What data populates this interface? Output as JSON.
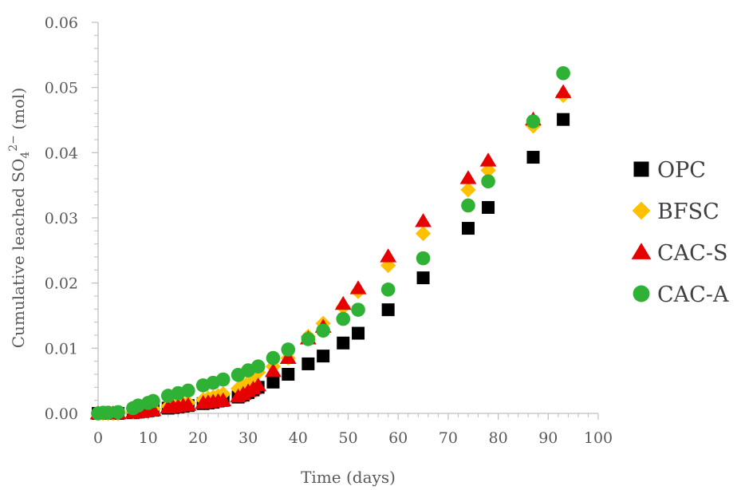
{
  "chart_data": {
    "type": "scatter",
    "xlabel": "Time (days)",
    "ylabel_parts": {
      "main": "Cumulative leached SO",
      "sub": "4",
      "sup": "2−",
      "unit": " (mol)"
    },
    "xlim": [
      0,
      100
    ],
    "ylim": [
      0,
      0.06
    ],
    "xticks": [
      0,
      10,
      20,
      30,
      40,
      50,
      60,
      70,
      80,
      90,
      100
    ],
    "yticks": [
      0.0,
      0.01,
      0.02,
      0.03,
      0.04,
      0.05,
      0.06
    ],
    "ytick_labels": [
      "0.00",
      "0.01",
      "0.02",
      "0.03",
      "0.04",
      "0.05",
      "0.06"
    ],
    "grid": false,
    "legend_position": "right",
    "series": [
      {
        "name": "OPC",
        "marker": "square",
        "color": "#000000",
        "x": [
          0,
          1,
          2,
          3,
          4,
          7,
          8,
          9,
          10,
          11,
          14,
          15,
          16,
          17,
          18,
          21,
          22,
          23,
          24,
          25,
          28,
          29,
          30,
          31,
          32,
          35,
          38,
          42,
          45,
          49,
          52,
          58,
          65,
          74,
          78,
          87,
          93
        ],
        "y": [
          0,
          0,
          0,
          0,
          0,
          0.0001,
          0.0002,
          0.0003,
          0.0004,
          0.0005,
          0.0008,
          0.0009,
          0.001,
          0.0011,
          0.0012,
          0.0015,
          0.0016,
          0.0017,
          0.0019,
          0.002,
          0.0025,
          0.0028,
          0.0032,
          0.0036,
          0.004,
          0.0048,
          0.006,
          0.0076,
          0.0088,
          0.0108,
          0.0123,
          0.0159,
          0.0208,
          0.0284,
          0.0316,
          0.0393,
          0.0451
        ]
      },
      {
        "name": "BFSC",
        "marker": "diamond",
        "color": "#FFC000",
        "x": [
          0,
          1,
          2,
          3,
          4,
          7,
          8,
          9,
          10,
          11,
          14,
          15,
          16,
          17,
          18,
          21,
          22,
          23,
          24,
          25,
          28,
          29,
          30,
          31,
          32,
          35,
          38,
          42,
          45,
          49,
          52,
          58,
          65,
          74,
          78,
          87,
          93
        ],
        "y": [
          0,
          0,
          0,
          0,
          0,
          0.0002,
          0.0003,
          0.0004,
          0.0006,
          0.0007,
          0.0011,
          0.0012,
          0.0013,
          0.0015,
          0.0016,
          0.0021,
          0.0023,
          0.0025,
          0.0027,
          0.003,
          0.0038,
          0.0042,
          0.0047,
          0.0055,
          0.0063,
          0.0072,
          0.0085,
          0.0118,
          0.0138,
          0.0163,
          0.0187,
          0.0227,
          0.0276,
          0.0343,
          0.0373,
          0.0441,
          0.0488
        ]
      },
      {
        "name": "CAC-S",
        "marker": "triangle",
        "color": "#E60000",
        "x": [
          0,
          1,
          2,
          3,
          4,
          7,
          8,
          9,
          10,
          11,
          14,
          15,
          16,
          17,
          18,
          21,
          22,
          23,
          24,
          25,
          28,
          29,
          30,
          31,
          32,
          35,
          38,
          42,
          45,
          49,
          52,
          58,
          65,
          74,
          78,
          87,
          93
        ],
        "y": [
          0,
          0,
          0,
          0,
          0,
          0.0001,
          0.0002,
          0.0003,
          0.0004,
          0.0005,
          0.0009,
          0.001,
          0.0011,
          0.0012,
          0.0013,
          0.0016,
          0.0017,
          0.0018,
          0.0019,
          0.002,
          0.0026,
          0.003,
          0.0034,
          0.0038,
          0.0043,
          0.0065,
          0.0085,
          0.0115,
          0.0133,
          0.0168,
          0.0192,
          0.0241,
          0.0295,
          0.0361,
          0.0388,
          0.0451,
          0.0493
        ]
      },
      {
        "name": "CAC-A",
        "marker": "circle",
        "color": "#2EB135",
        "x": [
          0,
          1,
          2,
          4,
          7,
          8,
          10,
          11,
          14,
          16,
          18,
          21,
          23,
          25,
          28,
          30,
          32,
          35,
          38,
          42,
          45,
          49,
          52,
          58,
          65,
          74,
          78,
          87,
          93
        ],
        "y": [
          0,
          0.0001,
          0.0001,
          0.0002,
          0.0008,
          0.0012,
          0.0016,
          0.0019,
          0.0027,
          0.0031,
          0.0035,
          0.0043,
          0.0047,
          0.0052,
          0.0059,
          0.0066,
          0.0072,
          0.0085,
          0.0098,
          0.0114,
          0.0127,
          0.0145,
          0.0159,
          0.019,
          0.0238,
          0.0319,
          0.0356,
          0.0448,
          0.0522
        ]
      }
    ]
  }
}
